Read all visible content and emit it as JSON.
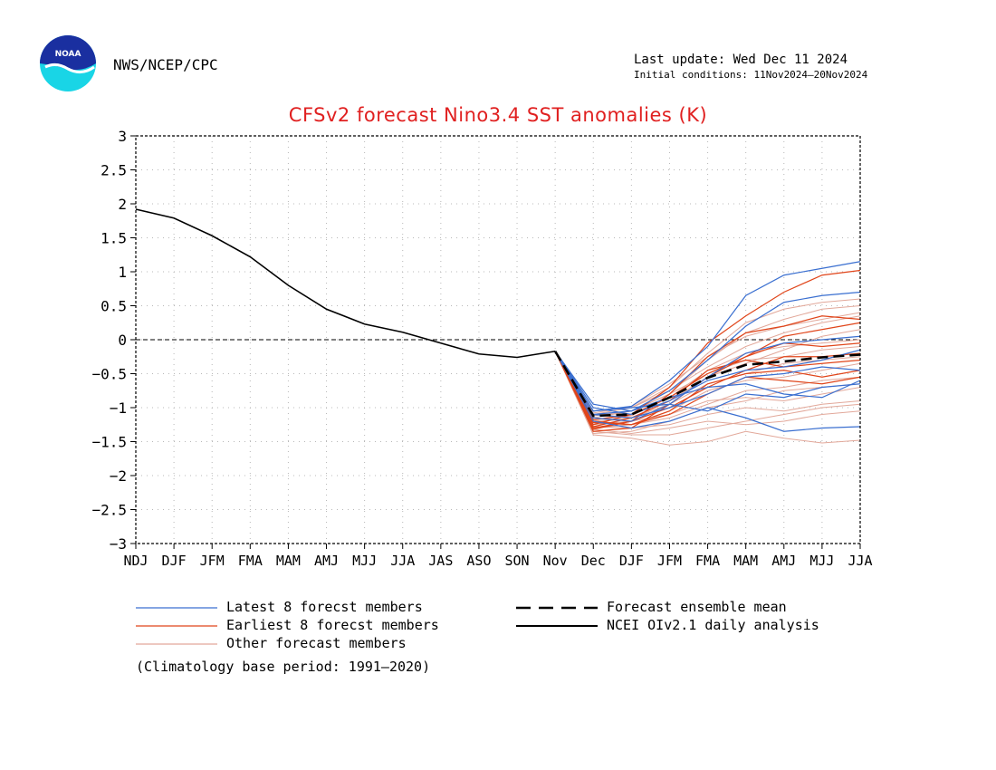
{
  "header": {
    "agency": "NWS/NCEP/CPC",
    "last_update": "Last update: Wed Dec 11 2024",
    "initial_conditions": "Initial conditions: 11Nov2024–20Nov2024",
    "logo_icon": "noaa-logo-icon",
    "logo_text": "NOAA"
  },
  "colors": {
    "latest": "#3a6fd0",
    "earliest": "#e0451a",
    "other": "#e2a89a",
    "analysis": "#000000",
    "mean": "#000000",
    "title": "#e02020"
  },
  "chart_data": {
    "type": "line",
    "title": "CFSv2 forecast Nino3.4 SST anomalies (K)",
    "categories": [
      "NDJ",
      "DJF",
      "JFM",
      "FMA",
      "MAM",
      "AMJ",
      "MJJ",
      "JJA",
      "JAS",
      "ASO",
      "SON",
      "Nov",
      "Dec",
      "DJF",
      "JFM",
      "FMA",
      "MAM",
      "AMJ",
      "MJJ",
      "JJA"
    ],
    "ylim": [
      -3,
      3
    ],
    "yticks": [
      "3",
      "2.5",
      "2",
      "1.5",
      "1",
      "0.5",
      "0",
      "−0.5",
      "−1",
      "−1.5",
      "−2",
      "−2.5",
      "−3"
    ],
    "grid": true,
    "zero_line": true,
    "analysis": {
      "name": "NCEI OIv2.1 daily analysis",
      "values": [
        1.92,
        1.79,
        1.53,
        1.22,
        0.8,
        0.45,
        0.23,
        0.11,
        -0.05,
        -0.21,
        -0.26,
        -0.17
      ]
    },
    "ensemble_mean": {
      "name": "Forecast ensemble mean",
      "values": [
        -1.12,
        -1.1,
        -0.85,
        -0.56,
        -0.37,
        -0.32,
        -0.26,
        -0.22
      ]
    },
    "latest_members": {
      "name": "Latest 8 forecst members",
      "values": [
        [
          -1.05,
          -0.98,
          -0.6,
          -0.1,
          0.65,
          0.95,
          1.05,
          1.15
        ],
        [
          -1.1,
          -1.05,
          -0.75,
          -0.3,
          0.2,
          0.55,
          0.65,
          0.7
        ],
        [
          -1.15,
          -1.2,
          -0.95,
          -0.55,
          -0.2,
          -0.05,
          0.0,
          0.05
        ],
        [
          -1.0,
          -1.1,
          -0.9,
          -0.6,
          -0.45,
          -0.4,
          -0.3,
          -0.15
        ],
        [
          -1.2,
          -1.3,
          -1.2,
          -1.0,
          -1.15,
          -1.35,
          -1.3,
          -1.28
        ],
        [
          -0.95,
          -1.05,
          -0.85,
          -0.7,
          -0.65,
          -0.8,
          -0.85,
          -0.6
        ],
        [
          -1.1,
          -1.15,
          -1.0,
          -0.8,
          -0.55,
          -0.5,
          -0.4,
          -0.45
        ],
        [
          -1.05,
          -1.0,
          -0.95,
          -1.05,
          -0.8,
          -0.85,
          -0.7,
          -0.65
        ]
      ]
    },
    "earliest_members": {
      "name": "Earliest 8 forecst members",
      "values": [
        [
          -1.25,
          -1.1,
          -0.7,
          -0.05,
          0.35,
          0.7,
          0.95,
          1.02
        ],
        [
          -1.3,
          -1.2,
          -0.8,
          -0.25,
          0.1,
          0.2,
          0.35,
          0.3
        ],
        [
          -1.35,
          -1.3,
          -0.95,
          -0.55,
          -0.25,
          0.05,
          0.15,
          0.25
        ],
        [
          -1.2,
          -1.25,
          -1.05,
          -0.65,
          -0.5,
          -0.45,
          -0.55,
          -0.45
        ],
        [
          -1.28,
          -1.15,
          -0.9,
          -0.45,
          -0.3,
          -0.4,
          -0.35,
          -0.3
        ],
        [
          -1.22,
          -1.25,
          -1.1,
          -0.8,
          -0.55,
          -0.6,
          -0.65,
          -0.55
        ],
        [
          -1.32,
          -1.2,
          -1.0,
          -0.7,
          -0.45,
          -0.25,
          -0.25,
          -0.2
        ],
        [
          -1.18,
          -1.1,
          -0.85,
          -0.5,
          -0.25,
          -0.05,
          -0.1,
          -0.05
        ]
      ]
    },
    "other_members": {
      "name": "Other forecast members",
      "values": [
        [
          -1.4,
          -1.45,
          -1.55,
          -1.5,
          -1.35,
          -1.45,
          -1.52,
          -1.48
        ],
        [
          -1.35,
          -1.4,
          -1.4,
          -1.3,
          -1.2,
          -1.1,
          -1.0,
          -0.95
        ],
        [
          -1.3,
          -1.25,
          -1.05,
          -0.75,
          -0.6,
          -0.55,
          -0.45,
          -0.35
        ],
        [
          -1.2,
          -1.15,
          -0.9,
          -0.55,
          -0.35,
          -0.15,
          0.05,
          0.15
        ],
        [
          -1.15,
          -1.05,
          -0.8,
          -0.3,
          0.1,
          0.3,
          0.45,
          0.5
        ],
        [
          -1.25,
          -1.2,
          -1.1,
          -0.9,
          -0.85,
          -0.9,
          -0.8,
          -0.7
        ],
        [
          -1.1,
          -1.0,
          -0.75,
          -0.4,
          -0.1,
          0.1,
          0.25,
          0.35
        ],
        [
          -1.28,
          -1.3,
          -1.25,
          -1.1,
          -1.0,
          -1.05,
          -0.95,
          -0.9
        ],
        [
          -1.05,
          -1.0,
          -0.7,
          -0.2,
          0.25,
          0.45,
          0.55,
          0.6
        ],
        [
          -1.32,
          -1.38,
          -1.3,
          -1.2,
          -1.25,
          -1.2,
          -1.1,
          -1.05
        ],
        [
          -1.22,
          -1.15,
          -0.95,
          -0.65,
          -0.5,
          -0.35,
          -0.3,
          -0.25
        ],
        [
          -1.18,
          -1.12,
          -0.85,
          -0.45,
          -0.2,
          -0.1,
          -0.05,
          0.0
        ],
        [
          -1.3,
          -1.25,
          -1.15,
          -0.95,
          -0.75,
          -0.7,
          -0.6,
          -0.55
        ],
        [
          -1.12,
          -1.05,
          -0.8,
          -0.5,
          -0.3,
          -0.25,
          -0.15,
          -0.1
        ],
        [
          -1.38,
          -1.35,
          -1.2,
          -1.0,
          -0.9,
          -0.75,
          -0.7,
          -0.65
        ],
        [
          -1.08,
          -0.98,
          -0.65,
          -0.25,
          0.05,
          0.2,
          0.3,
          0.4
        ]
      ]
    },
    "legend": {
      "placement": "bottom",
      "latest": "Latest 8 forecst members",
      "earliest": "Earliest 8 forecst members",
      "other": "Other forecast members",
      "mean": "Forecast ensemble mean",
      "analysis": "NCEI OIv2.1 daily analysis",
      "climatology": "(Climatology base period: 1991–2020)"
    }
  }
}
